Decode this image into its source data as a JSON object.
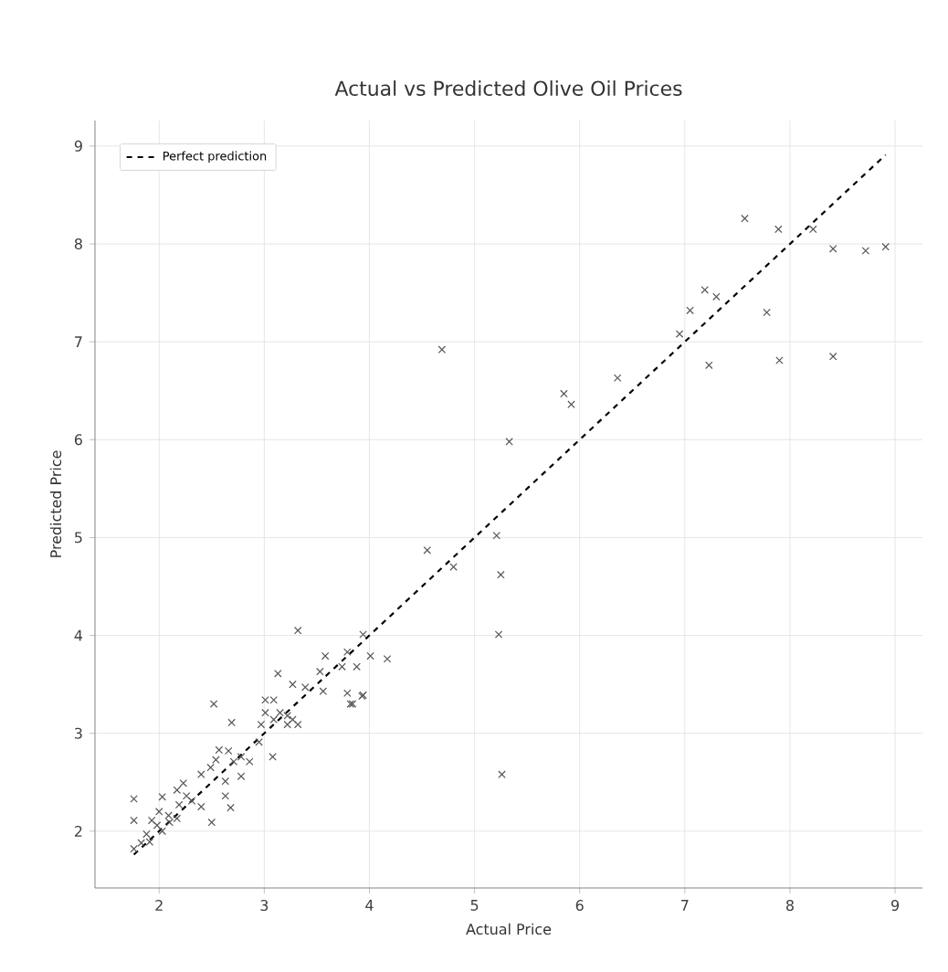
{
  "chart_data": {
    "type": "scatter",
    "title": "Actual vs Predicted Olive Oil Prices",
    "xlabel": "Actual Price",
    "ylabel": "Predicted Price",
    "xlim": [
      1.39,
      9.26
    ],
    "ylim": [
      1.42,
      9.26
    ],
    "xticks": [
      2,
      3,
      4,
      5,
      6,
      7,
      8,
      9
    ],
    "yticks": [
      2,
      3,
      4,
      5,
      6,
      7,
      8,
      9
    ],
    "grid": true,
    "legend": "top left",
    "marker": "cross",
    "series": [
      {
        "color": "#555555",
        "x": [
          4.69,
          5.33,
          5.85,
          5.92,
          6.36,
          5.21,
          5.25,
          5.23,
          4.8,
          4.55,
          5.26,
          3.79,
          3.82,
          3.94,
          7.57,
          7.89,
          8.22,
          8.41,
          8.72,
          8.91,
          7.19,
          7.3,
          7.05,
          7.78,
          6.95,
          7.23,
          7.9,
          8.41,
          3.32,
          3.94,
          3.58,
          3.79,
          4.01,
          4.17,
          3.74,
          3.88,
          3.53,
          3.13,
          3.27,
          3.39,
          3.56,
          3.93,
          3.84,
          2.52,
          3.01,
          3.09,
          3.01,
          3.15,
          3.22,
          3.27,
          3.09,
          2.69,
          3.32,
          2.97,
          3.22,
          2.95,
          3.08,
          2.57,
          2.66,
          2.78,
          2.71,
          2.54,
          2.86,
          2.49,
          2.78,
          2.4,
          2.23,
          2.63,
          2.17,
          2.03,
          2.26,
          2.31,
          2.63,
          2.4,
          2.68,
          2.5,
          2.0,
          2.09,
          1.93,
          2.17,
          1.98,
          2.03,
          1.88,
          1.91,
          1.76,
          1.76,
          1.76,
          1.83,
          2.1,
          2.19
        ],
        "values": [
          6.92,
          5.98,
          6.47,
          6.36,
          6.63,
          5.02,
          4.62,
          4.01,
          4.7,
          4.87,
          2.58,
          3.41,
          3.3,
          3.39,
          8.26,
          8.15,
          8.15,
          7.95,
          7.93,
          7.97,
          7.53,
          7.46,
          7.32,
          7.3,
          7.08,
          6.76,
          6.81,
          6.85,
          4.05,
          4.01,
          3.79,
          3.83,
          3.79,
          3.76,
          3.68,
          3.68,
          3.63,
          3.61,
          3.5,
          3.47,
          3.43,
          3.38,
          3.3,
          3.3,
          3.34,
          3.34,
          3.21,
          3.21,
          3.18,
          3.14,
          3.14,
          3.11,
          3.09,
          3.09,
          3.09,
          2.91,
          2.76,
          2.83,
          2.82,
          2.76,
          2.71,
          2.73,
          2.71,
          2.65,
          2.56,
          2.58,
          2.49,
          2.51,
          2.42,
          2.35,
          2.36,
          2.31,
          2.36,
          2.25,
          2.24,
          2.09,
          2.2,
          2.16,
          2.11,
          2.13,
          2.06,
          2.0,
          1.97,
          1.89,
          2.33,
          2.11,
          1.82,
          1.88,
          2.09,
          2.27
        ]
      },
      {
        "name": "Perfect prediction",
        "color": "#000000",
        "type": "line",
        "line_style": "dashed",
        "marker": "none",
        "x": [
          1.76,
          8.91
        ],
        "values": [
          1.76,
          8.91
        ]
      }
    ]
  }
}
